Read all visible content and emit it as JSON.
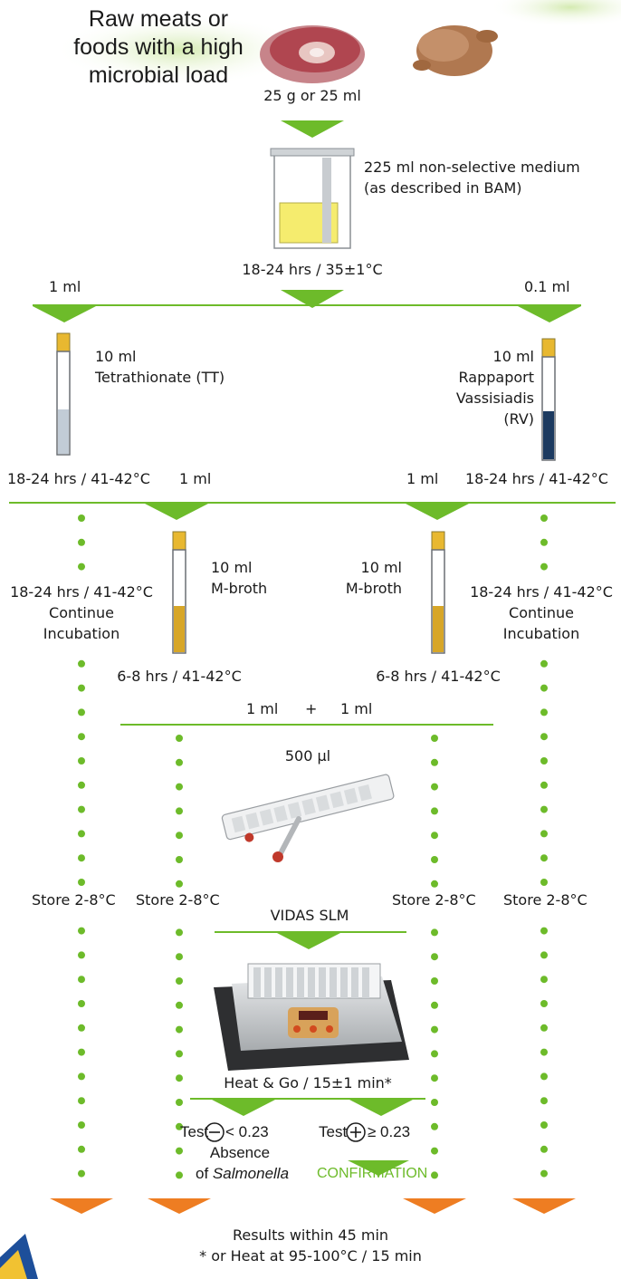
{
  "title": "Raw meats or foods with a high microbial load",
  "sample": "25 g or 25 ml",
  "medium": {
    "line1": "225 ml non-selective medium",
    "line2": "(as described in BAM)"
  },
  "incubation_1": "18-24 hrs / 35±1°C",
  "branch_left": "1 ml",
  "branch_right": "0.1 ml",
  "tt": {
    "line1": "10 ml",
    "line2": "Tetrathionate (TT)"
  },
  "rv": {
    "line1": "10 ml",
    "line2": "Rappaport",
    "line3": "Vassisiadis",
    "line4": "(RV)"
  },
  "incubation_2_left": "18-24 hrs / 41-42°C",
  "transfer_left": "1 ml",
  "transfer_right": "1 ml",
  "incubation_2_right": "18-24 hrs / 41-42°C",
  "mbroth_left": {
    "line1": "10 ml",
    "line2": "M-broth"
  },
  "mbroth_right": {
    "line1": "10 ml",
    "line2": "M-broth"
  },
  "continue_left": {
    "line1": "18-24 hrs / 41-42°C",
    "line2": "Continue",
    "line3": "Incubation"
  },
  "continue_right": {
    "line1": "18-24 hrs / 41-42°C",
    "line2": "Continue",
    "line3": "Incubation"
  },
  "mbroth_incubation_left": "6-8 hrs / 41-42°C",
  "mbroth_incubation_right": "6-8 hrs / 41-42°C",
  "combine": {
    "left": "1 ml",
    "plus": "+",
    "right": "1 ml"
  },
  "volume": "500 µl",
  "store": {
    "a": "Store 2-8°C",
    "b": "Store 2-8°C",
    "c": "Store 2-8°C",
    "d": "Store 2-8°C"
  },
  "vidas": "VIDAS SLM",
  "heat": "Heat & Go / 15±1 min*",
  "test_negative": {
    "prefix": "Test",
    "symbol": "−",
    "suffix": "< 0.23"
  },
  "test_positive": {
    "prefix": "Test",
    "symbol": "+",
    "suffix": "≥ 0.23"
  },
  "absence": {
    "line1": "Absence",
    "line2_prefix": "of",
    "line2_italic": "Salmonella"
  },
  "confirmation": "CONFIRMATION",
  "results": "Results within 45 min",
  "footnote": "* or Heat at 95-100°C / 15 min",
  "colors": {
    "green": "#6dbb2a",
    "orange": "#ee7d22",
    "medium_yellow": "#f5ec6e",
    "tt_fill": "#c2ccd6",
    "rv_fill": "#1c3a60",
    "mbroth_fill": "#d7a628",
    "cap": "#e8b830"
  },
  "icons": [
    "raw-steak-icon",
    "raw-chicken-icon",
    "stomacher-bag-icon",
    "tube-icon",
    "vidas-strip-icon",
    "heat-block-icon"
  ]
}
